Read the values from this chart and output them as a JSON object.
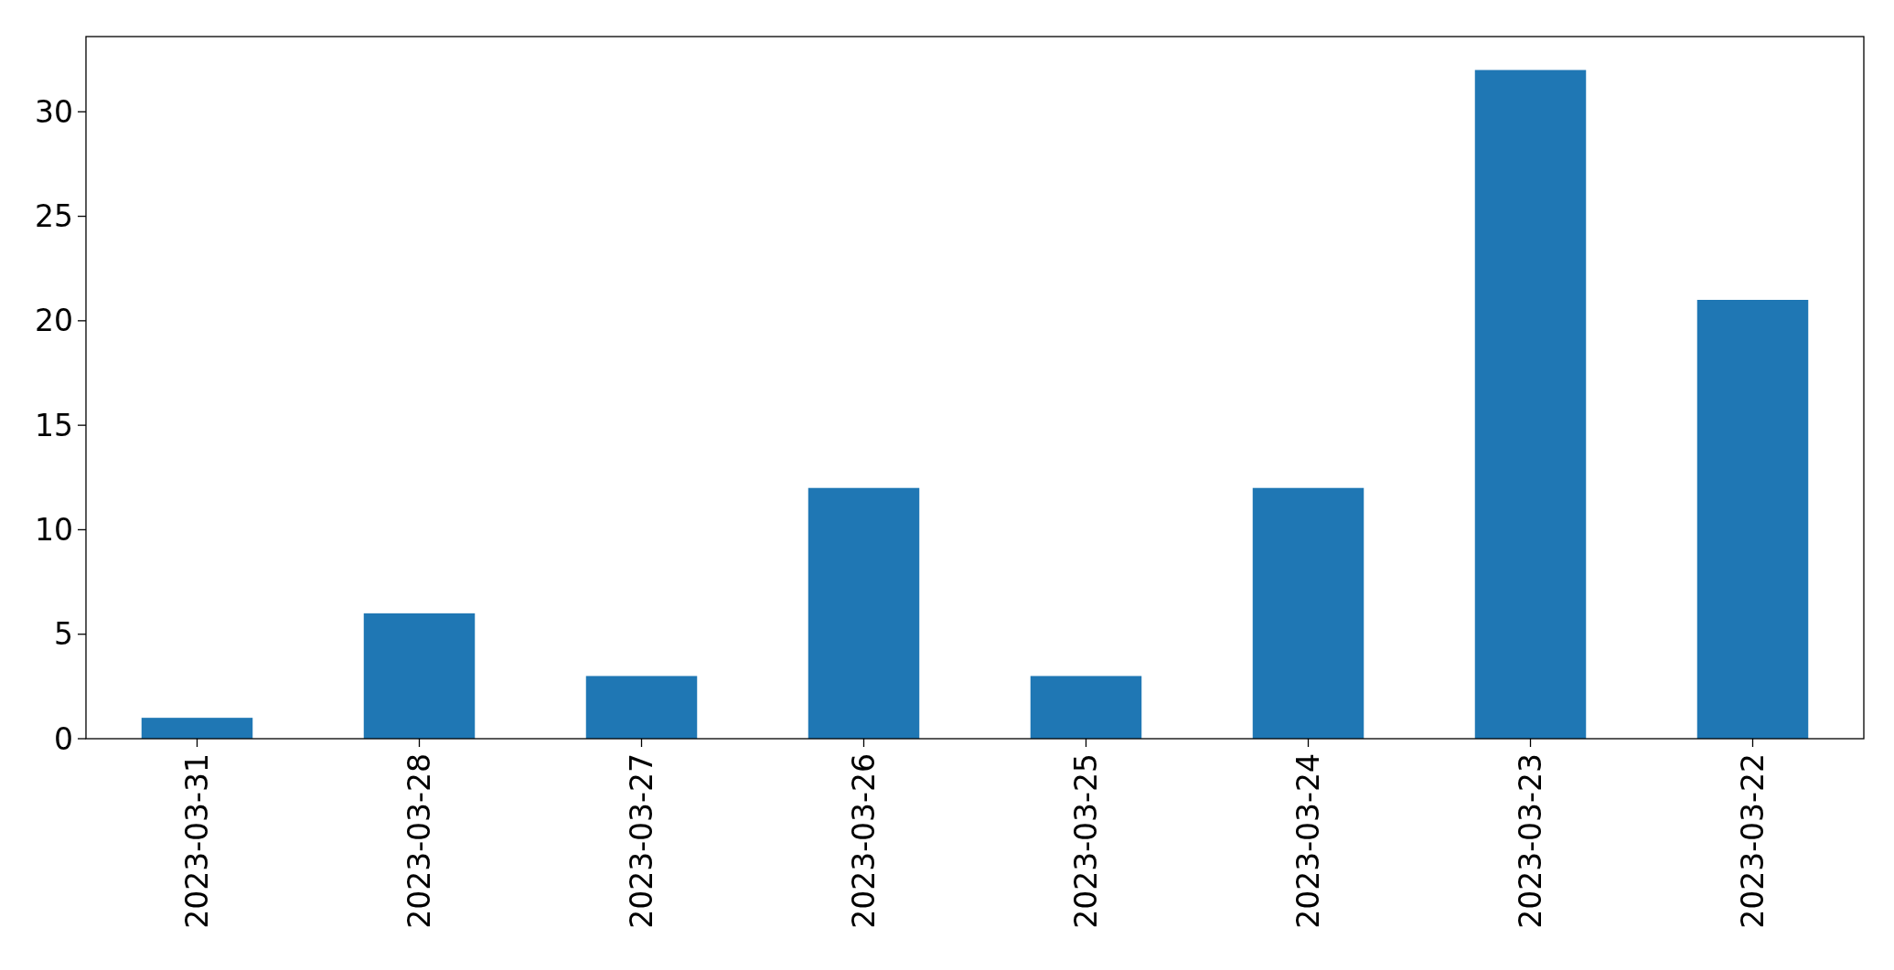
{
  "chart_data": {
    "type": "bar",
    "categories": [
      "2023-03-31",
      "2023-03-28",
      "2023-03-27",
      "2023-03-26",
      "2023-03-25",
      "2023-03-24",
      "2023-03-23",
      "2023-03-22"
    ],
    "values": [
      1,
      6,
      3,
      12,
      3,
      12,
      32,
      21
    ],
    "color": "#1f77b4",
    "ylim": [
      0,
      33.6
    ],
    "yticks": [
      0,
      5,
      10,
      15,
      20,
      25,
      30
    ]
  }
}
